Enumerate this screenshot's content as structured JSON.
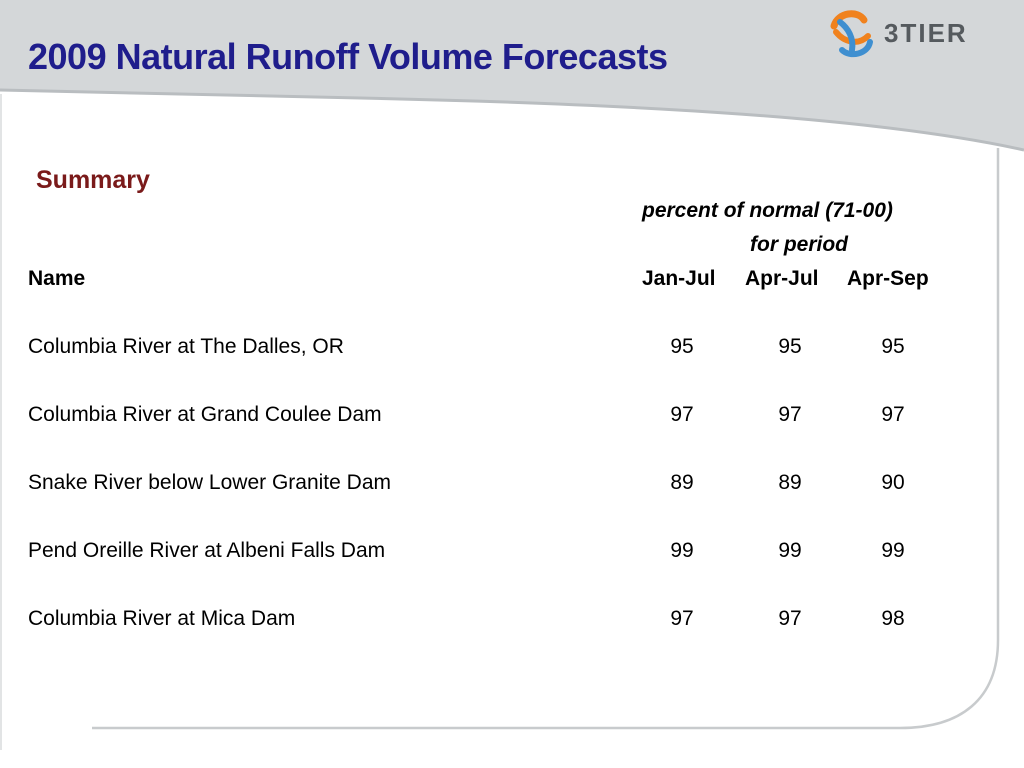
{
  "slide": {
    "title": "2009 Natural Runoff Volume Forecasts",
    "logo_text": "3TIER",
    "section_heading": "Summary"
  },
  "table": {
    "subheader_line1": "percent of normal (71-00)",
    "subheader_line2": "for period",
    "name_header": "Name",
    "period_headers": [
      "Jan-Jul",
      "Apr-Jul",
      "Apr-Sep"
    ],
    "rows": [
      {
        "name": "Columbia River at The Dalles, OR",
        "values": [
          "95",
          "95",
          "95"
        ]
      },
      {
        "name": "Columbia River at Grand Coulee Dam",
        "values": [
          "97",
          "97",
          "97"
        ]
      },
      {
        "name": "Snake River below Lower Granite Dam",
        "values": [
          "89",
          "89",
          "90"
        ]
      },
      {
        "name": "Pend Oreille River at Albeni Falls Dam",
        "values": [
          "99",
          "99",
          "99"
        ]
      },
      {
        "name": "Columbia River at Mica Dam",
        "values": [
          "97",
          "97",
          "98"
        ]
      }
    ]
  },
  "colors": {
    "title": "#1f1d8c",
    "section_heading": "#7a1a1a",
    "header_band": "#d4d7d9",
    "logo_orange": "#f0821e",
    "logo_blue": "#3f8fd0"
  }
}
